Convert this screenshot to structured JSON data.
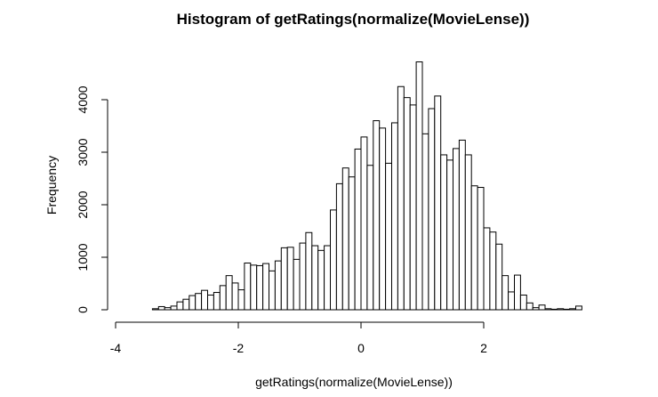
{
  "chart_data": {
    "type": "bar",
    "title": "Histogram of getRatings(normalize(MovieLense))",
    "xlabel": "getRatings(normalize(MovieLense))",
    "ylabel": "Frequency",
    "bin_width": 0.1,
    "bin_start": -3.4,
    "xlim": [
      -4,
      3.6
    ],
    "ylim": [
      0,
      4800
    ],
    "x_ticks": [
      -4,
      -2,
      0,
      2
    ],
    "y_ticks": [
      0,
      1000,
      2000,
      3000,
      4000
    ],
    "x_tick_labels": [
      "-4",
      "-2",
      "0",
      "2"
    ],
    "y_tick_labels": [
      "0",
      "1000",
      "2000",
      "3000",
      "4000"
    ],
    "grid": false,
    "legend": "none",
    "bar_fill": "#ffffff",
    "bar_stroke": "#000000",
    "values": [
      20,
      60,
      40,
      70,
      150,
      200,
      270,
      310,
      370,
      280,
      330,
      460,
      650,
      510,
      380,
      890,
      850,
      840,
      880,
      740,
      930,
      1180,
      1190,
      960,
      1270,
      1470,
      1220,
      1130,
      1220,
      1900,
      2400,
      2700,
      2530,
      3060,
      3290,
      2750,
      3600,
      3460,
      2790,
      3560,
      4250,
      4040,
      3900,
      4720,
      3350,
      3830,
      4070,
      2950,
      2850,
      3070,
      3230,
      2950,
      2360,
      2330,
      1560,
      1480,
      1250,
      650,
      340,
      660,
      280,
      130,
      40,
      90,
      20,
      10,
      20,
      10,
      20,
      70
    ]
  }
}
